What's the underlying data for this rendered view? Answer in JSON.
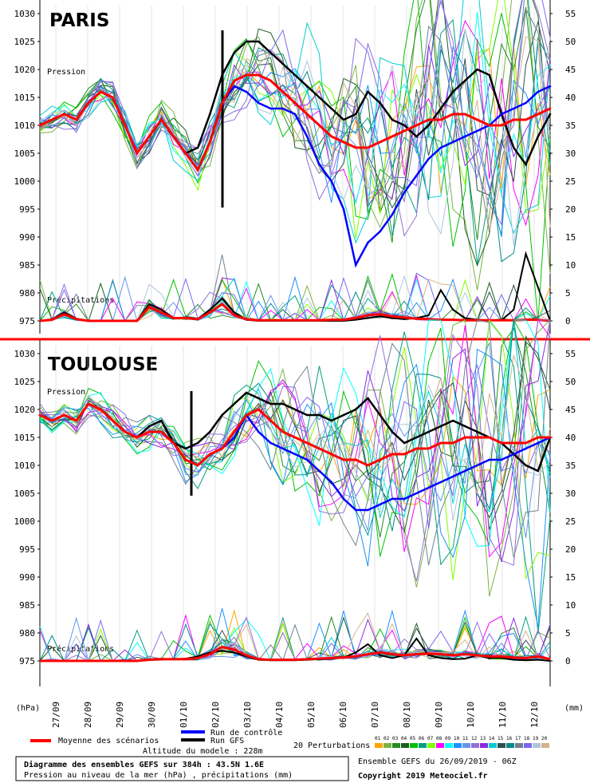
{
  "chart_data": [
    {
      "type": "line",
      "title": "PARIS",
      "label_pressure": "Pression",
      "label_precip": "Précipitations",
      "ylim_pressure": [
        975,
        1030
      ],
      "yticks_left": [
        "1030",
        "1025",
        "1020",
        "1015",
        "1010",
        "1005",
        "1000",
        "995",
        "990",
        "985",
        "980",
        "975"
      ],
      "yticks_right": [
        "55",
        "50",
        "45",
        "40",
        "35",
        "30",
        "25",
        "20",
        "15",
        "10",
        "5",
        "0"
      ],
      "run_marker_date": "02/10",
      "series": [
        {
          "name": "Moyenne des scénarios",
          "color": "#ff0000",
          "values": [
            1010,
            1011,
            1012,
            1011,
            1014,
            1016,
            1015,
            1010,
            1005,
            1008,
            1011,
            1008,
            1005,
            1002,
            1007,
            1014,
            1018,
            1019,
            1019,
            1018,
            1016,
            1014,
            1012,
            1010,
            1008,
            1007,
            1006,
            1006,
            1007,
            1008,
            1009,
            1010,
            1011,
            1011,
            1012,
            1012,
            1011,
            1010,
            1010,
            1011,
            1011,
            1012,
            1013
          ]
        },
        {
          "name": "Run de contrôle",
          "color": "#0000ff",
          "values": [
            1010,
            1011,
            1012,
            1011,
            1014,
            1016,
            1015,
            1010,
            1005,
            1008,
            1011,
            1008,
            1005,
            1002,
            1007,
            1014,
            1017,
            1016,
            1014,
            1013,
            1013,
            1012,
            1008,
            1003,
            1000,
            995,
            985,
            989,
            991,
            994,
            998,
            1001,
            1004,
            1006,
            1007,
            1008,
            1009,
            1010,
            1012,
            1013,
            1014,
            1016,
            1017
          ]
        },
        {
          "name": "Run GFS",
          "color": "#000000",
          "values": [
            1010,
            1011,
            1012,
            1011,
            1014,
            1016,
            1015,
            1010,
            1005,
            1008,
            1011,
            1008,
            1005,
            1006,
            1012,
            1019,
            1023,
            1025,
            1025,
            1023,
            1021,
            1019,
            1017,
            1015,
            1013,
            1011,
            1012,
            1016,
            1014,
            1011,
            1010,
            1008,
            1010,
            1013,
            1016,
            1018,
            1020,
            1019,
            1012,
            1006,
            1003,
            1008,
            1012
          ]
        }
      ],
      "precip_series": [
        {
          "name": "Moyenne des scénarios",
          "values": [
            0,
            0.2,
            1.2,
            0.3,
            0,
            0,
            0,
            0,
            0,
            2.5,
            1.5,
            0.5,
            0.5,
            0.3,
            1.5,
            3,
            1,
            0.3,
            0.1,
            0.1,
            0.1,
            0.1,
            0.1,
            0.1,
            0.2,
            0.2,
            0.5,
            1,
            1.2,
            0.8,
            0.6,
            0.4,
            0.3,
            0.2,
            0.2,
            0.1,
            0.1,
            0.1,
            0.1,
            0.1,
            0.2,
            0.2,
            0
          ]
        },
        {
          "name": "Run GFS",
          "values": [
            0,
            0.3,
            1.5,
            0.4,
            0,
            0,
            0,
            0,
            0,
            3,
            2,
            0.5,
            0.4,
            0.3,
            2,
            4,
            1.5,
            0.2,
            0,
            0,
            0,
            0,
            0,
            0,
            0,
            0,
            0.2,
            0.5,
            0.8,
            0.5,
            0.3,
            0.5,
            1,
            5.5,
            2,
            0.5,
            0.2,
            0.1,
            0.1,
            2,
            12,
            6,
            0
          ]
        }
      ]
    },
    {
      "type": "line",
      "title": "TOULOUSE",
      "label_pressure": "Pression",
      "label_precip": "Précipitations",
      "ylim_pressure": [
        975,
        1030
      ],
      "yticks_left": [
        "1030",
        "1025",
        "1020",
        "1015",
        "1010",
        "1005",
        "1000",
        "995",
        "990",
        "985",
        "980",
        "975"
      ],
      "yticks_right": [
        "55",
        "50",
        "45",
        "40",
        "35",
        "30",
        "25",
        "20",
        "15",
        "10",
        "5",
        "0"
      ],
      "run_marker_date": "01/10",
      "series": [
        {
          "name": "Moyenne des scénarios",
          "color": "#ff0000",
          "values": [
            1019,
            1018,
            1019,
            1018,
            1021,
            1020,
            1018,
            1016,
            1015,
            1016,
            1016,
            1014,
            1011,
            1010,
            1012,
            1013,
            1016,
            1019,
            1020,
            1018,
            1016,
            1015,
            1014,
            1013,
            1012,
            1011,
            1011,
            1010,
            1011,
            1012,
            1012,
            1013,
            1013,
            1014,
            1014,
            1015,
            1015,
            1015,
            1014,
            1014,
            1014,
            1015,
            1015
          ]
        },
        {
          "name": "Run de contrôle",
          "color": "#0000ff",
          "values": [
            1019,
            1018,
            1019,
            1018,
            1021,
            1020,
            1018,
            1016,
            1015,
            1016,
            1016,
            1014,
            1011,
            1010,
            1012,
            1013,
            1015,
            1019,
            1016,
            1014,
            1013,
            1012,
            1011,
            1009,
            1007,
            1004,
            1002,
            1002,
            1003,
            1004,
            1004,
            1005,
            1006,
            1007,
            1008,
            1009,
            1010,
            1011,
            1011,
            1012,
            1013,
            1014,
            1015
          ]
        },
        {
          "name": "Run GFS",
          "color": "#000000",
          "values": [
            1019,
            1018,
            1019,
            1018,
            1021,
            1020,
            1018,
            1016,
            1015,
            1017,
            1018,
            1014,
            1013,
            1014,
            1016,
            1019,
            1021,
            1023,
            1022,
            1021,
            1021,
            1020,
            1019,
            1019,
            1018,
            1019,
            1020,
            1022,
            1019,
            1016,
            1014,
            1015,
            1016,
            1017,
            1018,
            1017,
            1016,
            1015,
            1014,
            1012,
            1010,
            1009,
            1015
          ]
        }
      ],
      "precip_series": [
        {
          "name": "Moyenne des scénarios",
          "values": [
            0,
            0,
            0,
            0,
            0,
            0,
            0,
            0,
            0,
            0.2,
            0.3,
            0.3,
            0.3,
            0.5,
            1.2,
            2.5,
            2,
            1,
            0.3,
            0.2,
            0.2,
            0.2,
            0.3,
            0.4,
            0.5,
            0.6,
            0.8,
            1.2,
            1.5,
            1.2,
            1,
            1.2,
            1.3,
            1.2,
            1,
            1.2,
            1,
            0.8,
            0.8,
            0.6,
            0.5,
            0.8,
            0.3
          ]
        },
        {
          "name": "Run GFS",
          "values": [
            0,
            0,
            0,
            0,
            0,
            0,
            0,
            0,
            0,
            0.3,
            0.4,
            0.3,
            0.4,
            0.8,
            1.5,
            1.8,
            1.5,
            0.8,
            0.2,
            0.1,
            0.1,
            0.1,
            0.2,
            0.3,
            0.4,
            0.6,
            1.5,
            3,
            1,
            0.5,
            1,
            4,
            1,
            0.5,
            0.3,
            0.4,
            1,
            0.5,
            0.5,
            0.2,
            0.1,
            0.2,
            0
          ]
        }
      ]
    }
  ],
  "x_labels": [
    "27/09",
    "28/09",
    "29/09",
    "30/09",
    "01/10",
    "02/10",
    "03/10",
    "04/10",
    "05/10",
    "06/10",
    "07/10",
    "08/10",
    "09/10",
    "10/10",
    "11/10",
    "12/10"
  ],
  "unit_left": "(hPa)",
  "unit_right": "(mm)",
  "legend": {
    "mean": "Moyenne des scénarios",
    "control": "Run de contrôle",
    "gfs": "Run GFS",
    "altitude": "Altitude du modele : 228m",
    "perturbations": "20 Perturbations",
    "pert_numbers": [
      "01",
      "02",
      "03",
      "04",
      "05",
      "06",
      "07",
      "08",
      "09",
      "10",
      "11",
      "12",
      "13",
      "14",
      "15",
      "16",
      "17",
      "18",
      "19",
      "20"
    ],
    "pert_colors": [
      "#ffa500",
      "#7cb342",
      "#228b22",
      "#1b5e20",
      "#00c000",
      "#00a080",
      "#80ff00",
      "#ff00ff",
      "#00ffff",
      "#1e90ff",
      "#6495ed",
      "#9370db",
      "#8a2be2",
      "#00ced1",
      "#2f4f4f",
      "#008b8b",
      "#708090",
      "#7b68ee",
      "#b0c4de",
      "#d2b48c"
    ]
  },
  "footer": {
    "line1": "Diagramme des ensembles GEFS sur 384h : 43.5N 1.6E",
    "line2": "Pression au niveau de la mer (hPa) , précipitations (mm)",
    "ensemble": "Ensemble GEFS du 26/09/2019 - 06Z",
    "copyright": "Copyright 2019 Meteociel.fr"
  },
  "colors": {
    "mean": "#ff0000",
    "control": "#0000ff",
    "gfs": "#000000",
    "separator": "#ff0000",
    "grid": "#c8c8c8"
  }
}
